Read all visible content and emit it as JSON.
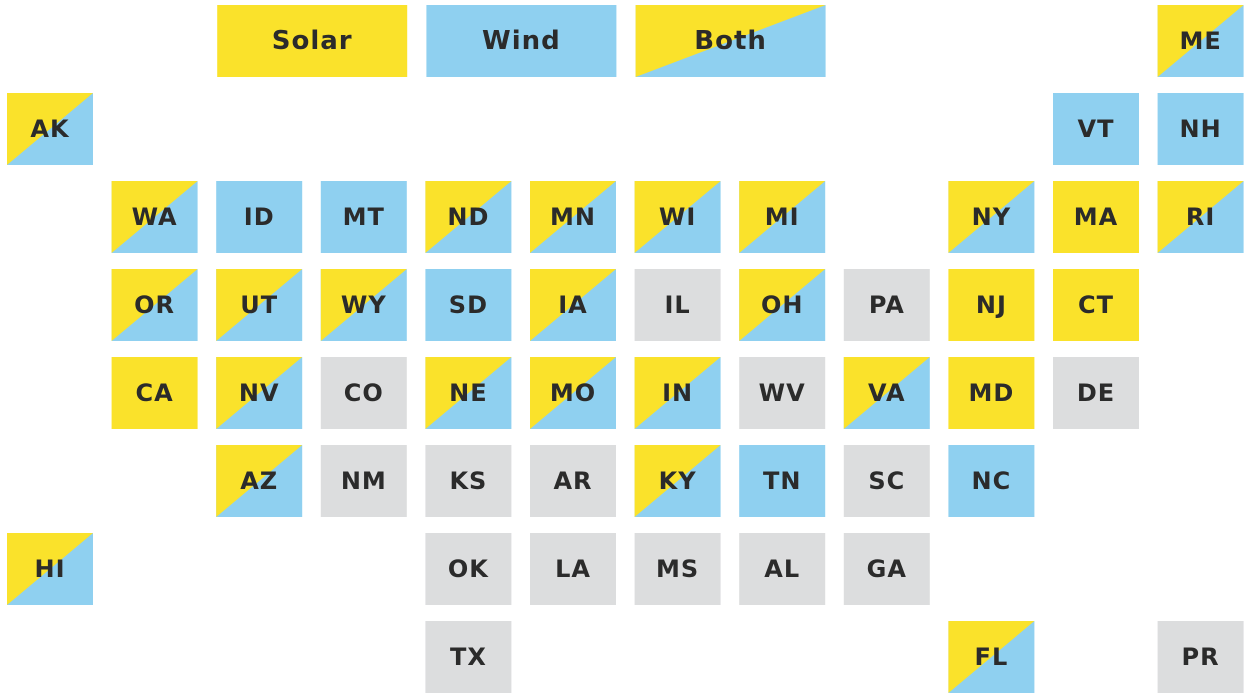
{
  "legend": {
    "solar": "Solar",
    "wind": "Wind",
    "both": "Both"
  },
  "colors": {
    "solar": "#fae22b",
    "wind": "#8fd0f0",
    "none": "#dcddde"
  },
  "tiles": {
    "solar": [
      "CA",
      "MD",
      "NJ",
      "MA",
      "CT"
    ],
    "wind": [
      "ID",
      "MT",
      "SD",
      "TN",
      "NC",
      "VT",
      "NH"
    ],
    "both": [
      "ME",
      "AK",
      "WA",
      "ND",
      "MN",
      "WI",
      "MI",
      "NY",
      "RI",
      "OR",
      "UT",
      "WY",
      "IA",
      "OH",
      "NV",
      "NE",
      "MO",
      "IN",
      "VA",
      "AZ",
      "KY",
      "HI",
      "FL"
    ],
    "none": [
      "IL",
      "PA",
      "CO",
      "WV",
      "DE",
      "NM",
      "KS",
      "AR",
      "SC",
      "OK",
      "LA",
      "MS",
      "AL",
      "GA",
      "TX",
      "PR"
    ]
  }
}
